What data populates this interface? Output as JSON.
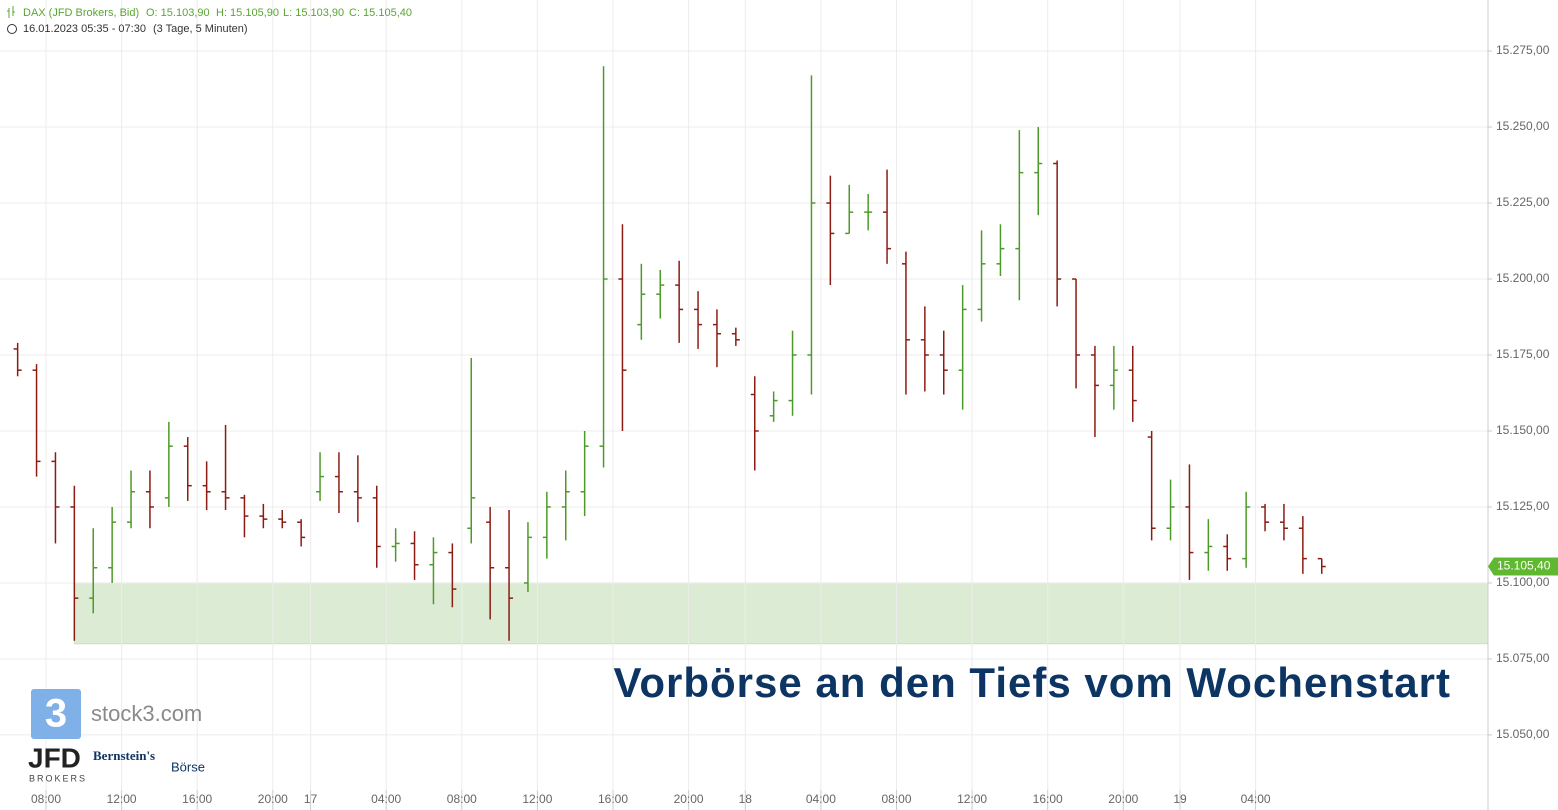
{
  "chart_data": {
    "type": "ohlc",
    "title": "Vorbörse an den Tiefs vom Wochenstart",
    "instrument": "DAX (JFD Brokers, Bid)",
    "header_values": [
      "O: 15.103,90",
      "H: 15.105,90",
      "L: 15.103,90",
      "C: 15.105,40"
    ],
    "subtitle": "16.01.2023 05:35 - 07:30",
    "period": "(3 Tage, 5 Minuten)",
    "categories": [
      null,
      null,
      "08:00",
      null,
      null,
      null,
      "12:00",
      null,
      null,
      null,
      "16:00",
      null,
      null,
      null,
      "20:00",
      null,
      "17",
      null,
      null,
      null,
      "04:00",
      null,
      null,
      null,
      "08:00",
      null,
      null,
      null,
      "12:00",
      null,
      null,
      null,
      "16:00",
      null,
      null,
      null,
      "20:00",
      null,
      null,
      "18",
      null,
      null,
      null,
      "04:00",
      null,
      null,
      null,
      "08:00",
      null,
      null,
      null,
      "12:00",
      null,
      null,
      null,
      "16:00",
      null,
      null,
      null,
      "20:00",
      null,
      null,
      "19",
      null,
      null,
      null,
      "04:00",
      null,
      null,
      null
    ],
    "open": [
      15177,
      15170,
      15140,
      15125,
      15095,
      15105,
      15120,
      15130,
      15128,
      15145,
      15132,
      15130,
      15128,
      15122,
      15121,
      15120,
      15130,
      15135,
      15130,
      15128,
      15112,
      15113,
      15106,
      15110,
      15118,
      15120,
      15105,
      15100,
      15115,
      15125,
      15130,
      15145,
      15200,
      15185,
      15195,
      15198,
      15190,
      15185,
      15182,
      15162,
      15155,
      15160,
      15175,
      15225,
      15215,
      15222,
      15222,
      15205,
      15180,
      15175,
      15170,
      15190,
      15205,
      15210,
      15235,
      15238,
      15200,
      15175,
      15165,
      15170,
      15148,
      15118,
      15125,
      15110,
      15112,
      15108,
      15125,
      15120,
      15118,
      15108
    ],
    "high": [
      15179,
      15172,
      15143,
      15132,
      15118,
      15125,
      15137,
      15137,
      15153,
      15148,
      15140,
      15152,
      15129,
      15126,
      15124,
      15121,
      15143,
      15143,
      15142,
      15132,
      15118,
      15117,
      15115,
      15113,
      15174,
      15125,
      15124,
      15120,
      15130,
      15137,
      15150,
      15270,
      15218,
      15205,
      15203,
      15206,
      15196,
      15190,
      15184,
      15168,
      15163,
      15183,
      15267,
      15234,
      15231,
      15228,
      15236,
      15209,
      15191,
      15183,
      15198,
      15216,
      15218,
      15249,
      15250,
      15239,
      15200,
      15178,
      15178,
      15178,
      15150,
      15134,
      15139,
      15121,
      15116,
      15130,
      15126,
      15126,
      15122,
      15108
    ],
    "low": [
      15168,
      15135,
      15113,
      15081,
      15090,
      15100,
      15118,
      15118,
      15125,
      15127,
      15124,
      15124,
      15115,
      15118,
      15118,
      15112,
      15127,
      15123,
      15120,
      15105,
      15107,
      15101,
      15093,
      15092,
      15113,
      15088,
      15081,
      15097,
      15108,
      15114,
      15122,
      15138,
      15150,
      15180,
      15187,
      15179,
      15177,
      15171,
      15178,
      15137,
      15153,
      15155,
      15162,
      15198,
      15215,
      15216,
      15205,
      15162,
      15163,
      15162,
      15157,
      15186,
      15201,
      15193,
      15221,
      15191,
      15164,
      15148,
      15157,
      15153,
      15114,
      15114,
      15101,
      15104,
      15104,
      15105,
      15117,
      15114,
      15103,
      15103
    ],
    "close": [
      15170,
      15140,
      15125,
      15095,
      15105,
      15120,
      15130,
      15125,
      15145,
      15132,
      15130,
      15128,
      15122,
      15121,
      15120,
      15115,
      15135,
      15130,
      15128,
      15112,
      15113,
      15106,
      15110,
      15098,
      15128,
      15105,
      15095,
      15115,
      15125,
      15130,
      15145,
      15200,
      15170,
      15195,
      15198,
      15190,
      15185,
      15182,
      15180,
      15150,
      15160,
      15175,
      15225,
      15215,
      15222,
      15222,
      15210,
      15180,
      15175,
      15170,
      15190,
      15205,
      15210,
      15235,
      15238,
      15200,
      15175,
      15165,
      15170,
      15160,
      15118,
      15125,
      15110,
      15112,
      15108,
      15125,
      15120,
      15118,
      15108,
      15105.4
    ],
    "up_color": "#4e9a28",
    "down_color": "#8c1c13",
    "zone": {
      "from": 15080,
      "to": 15100,
      "color": "#dcecd4"
    },
    "last_price": {
      "value": 15105.4,
      "label": "15.105,40"
    },
    "ylim": [
      15025.3,
      15291.8
    ],
    "yticks": [
      {
        "value": 15050,
        "label": "15.050,00"
      },
      {
        "value": 15075,
        "label": "15.075,00"
      },
      {
        "value": 15100,
        "label": "15.100,00"
      },
      {
        "value": 15125,
        "label": "15.125,00"
      },
      {
        "value": 15150,
        "label": "15.150,00"
      },
      {
        "value": 15175,
        "label": "15.175,00"
      },
      {
        "value": 15200,
        "label": "15.200,00"
      },
      {
        "value": 15225,
        "label": "15.225,00"
      },
      {
        "value": 15250,
        "label": "15.250,00"
      },
      {
        "value": 15275,
        "label": "15.275,00"
      }
    ],
    "grid": true
  },
  "branding": {
    "stock3_icon": "3",
    "stock3": "stock3.com",
    "jfd": "JFD",
    "jfd_sub": "BROKERS",
    "bernstein": "Bernstein's",
    "boerse": "Börse"
  }
}
